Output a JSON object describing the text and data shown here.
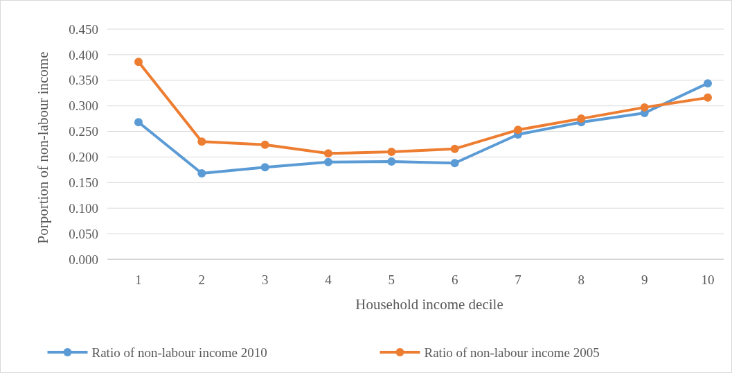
{
  "chart_data": {
    "type": "line",
    "xlabel": "Household income decile",
    "ylabel": "Porportion of non-labour income",
    "categories": [
      "1",
      "2",
      "3",
      "4",
      "5",
      "6",
      "7",
      "8",
      "9",
      "10"
    ],
    "series": [
      {
        "name": "Ratio of non-labour income 2010",
        "color": "#5b9bd5",
        "values": [
          0.268,
          0.168,
          0.18,
          0.19,
          0.191,
          0.188,
          0.244,
          0.268,
          0.286,
          0.344
        ]
      },
      {
        "name": "Ratio of non-labour income 2005",
        "color": "#ed7d31",
        "values": [
          0.386,
          0.23,
          0.224,
          0.207,
          0.21,
          0.216,
          0.253,
          0.275,
          0.297,
          0.316
        ]
      }
    ],
    "ylim": [
      0,
      0.45
    ],
    "yticks": [
      {
        "value": 0,
        "label": "0.000"
      },
      {
        "value": 0.05,
        "label": "0.050"
      },
      {
        "value": 0.1,
        "label": "0.100"
      },
      {
        "value": 0.15,
        "label": "0.150"
      },
      {
        "value": 0.2,
        "label": "0.200"
      },
      {
        "value": 0.25,
        "label": "0.250"
      },
      {
        "value": 0.3,
        "label": "0.300"
      },
      {
        "value": 0.35,
        "label": "0.350"
      },
      {
        "value": 0.4,
        "label": "0.400"
      },
      {
        "value": 0.45,
        "label": "0.450"
      }
    ],
    "grid": "y",
    "legend": "bottom",
    "marker": "circle",
    "line_style": "solid"
  }
}
